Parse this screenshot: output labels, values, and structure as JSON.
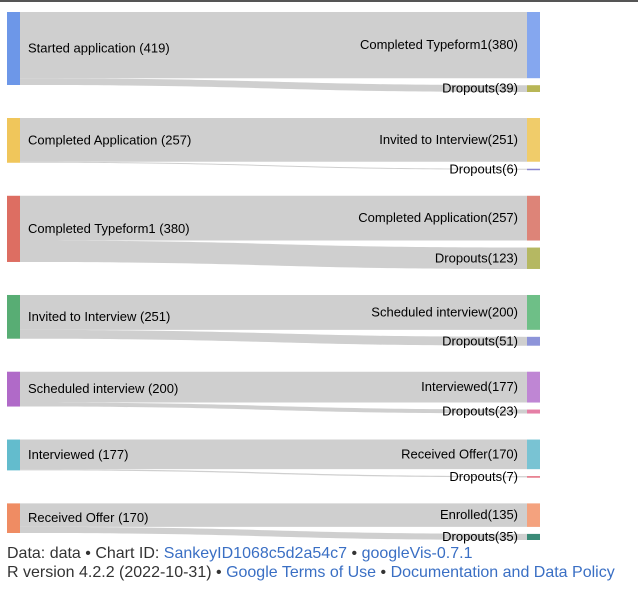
{
  "chart_data": {
    "type": "sankey",
    "links": [
      {
        "source": "Started application",
        "source_label": "Started application (419)",
        "target": "Completed Typeform1",
        "target_label": "Completed Typeform1(380)",
        "value": 380
      },
      {
        "source": "Started application",
        "target": "Dropouts",
        "target_label": "Dropouts(39)",
        "value": 39
      },
      {
        "source": "Completed Application",
        "source_label": "Completed Application (257)",
        "target": "Invited to Interview",
        "target_label": "Invited to Interview(251)",
        "value": 251
      },
      {
        "source": "Completed Application",
        "target": "Dropouts",
        "target_label": "Dropouts(6)",
        "value": 6
      },
      {
        "source": "Completed Typeform1",
        "source_label": "Completed Typeform1 (380)",
        "target": "Completed Application",
        "target_label": "Completed Application(257)",
        "value": 257
      },
      {
        "source": "Completed Typeform1",
        "target": "Dropouts",
        "target_label": "Dropouts(123)",
        "value": 123
      },
      {
        "source": "Invited to Interview",
        "source_label": "Invited to Interview (251)",
        "target": "Scheduled interview",
        "target_label": "Scheduled interview(200)",
        "value": 200
      },
      {
        "source": "Invited to Interview",
        "target": "Dropouts",
        "target_label": "Dropouts(51)",
        "value": 51
      },
      {
        "source": "Scheduled interview",
        "source_label": "Scheduled interview (200)",
        "target": "Interviewed",
        "target_label": "Interviewed(177)",
        "value": 177
      },
      {
        "source": "Scheduled interview",
        "target": "Dropouts",
        "target_label": "Dropouts(23)",
        "value": 23
      },
      {
        "source": "Interviewed",
        "source_label": "Interviewed (177)",
        "target": "Received Offer",
        "target_label": "Received Offer(170)",
        "value": 170
      },
      {
        "source": "Interviewed",
        "target": "Dropouts",
        "target_label": "Dropouts(7)",
        "value": 7
      },
      {
        "source": "Received Offer",
        "source_label": "Received Offer (170)",
        "target": "Enrolled",
        "target_label": "Enrolled(135)",
        "value": 135
      },
      {
        "source": "Received Offer",
        "target": "Dropouts",
        "target_label": "Dropouts(35)",
        "value": 35
      }
    ],
    "colors": {
      "source_nodes": [
        "#6d97e8",
        "#f0c65b",
        "#dd6e62",
        "#58ad74",
        "#b06ac8",
        "#63bccd",
        "#ef8c63"
      ],
      "target_nodes": [
        "#85a7ef",
        "#b8b656",
        "#f0cc6a",
        "#8c86cf",
        "#dd8478",
        "#b5b862",
        "#6ebf87",
        "#8d94d9",
        "#bf86d4",
        "#e57fa6",
        "#79c3d3",
        "#e36b7d",
        "#f4a27e",
        "#3a8a77"
      ],
      "link": "#cccccc"
    }
  },
  "footer": {
    "data_prefix": "Data: data • Chart ID:",
    "chart_id": "SankeyID1068c5d2a54c7",
    "sep": "•",
    "package": "googleVis-0.7.1",
    "r_version": "R version 4.2.2 (2022-10-31) •",
    "terms": "Google Terms of Use",
    "sep2": "•",
    "policy": "Documentation and Data Policy"
  }
}
